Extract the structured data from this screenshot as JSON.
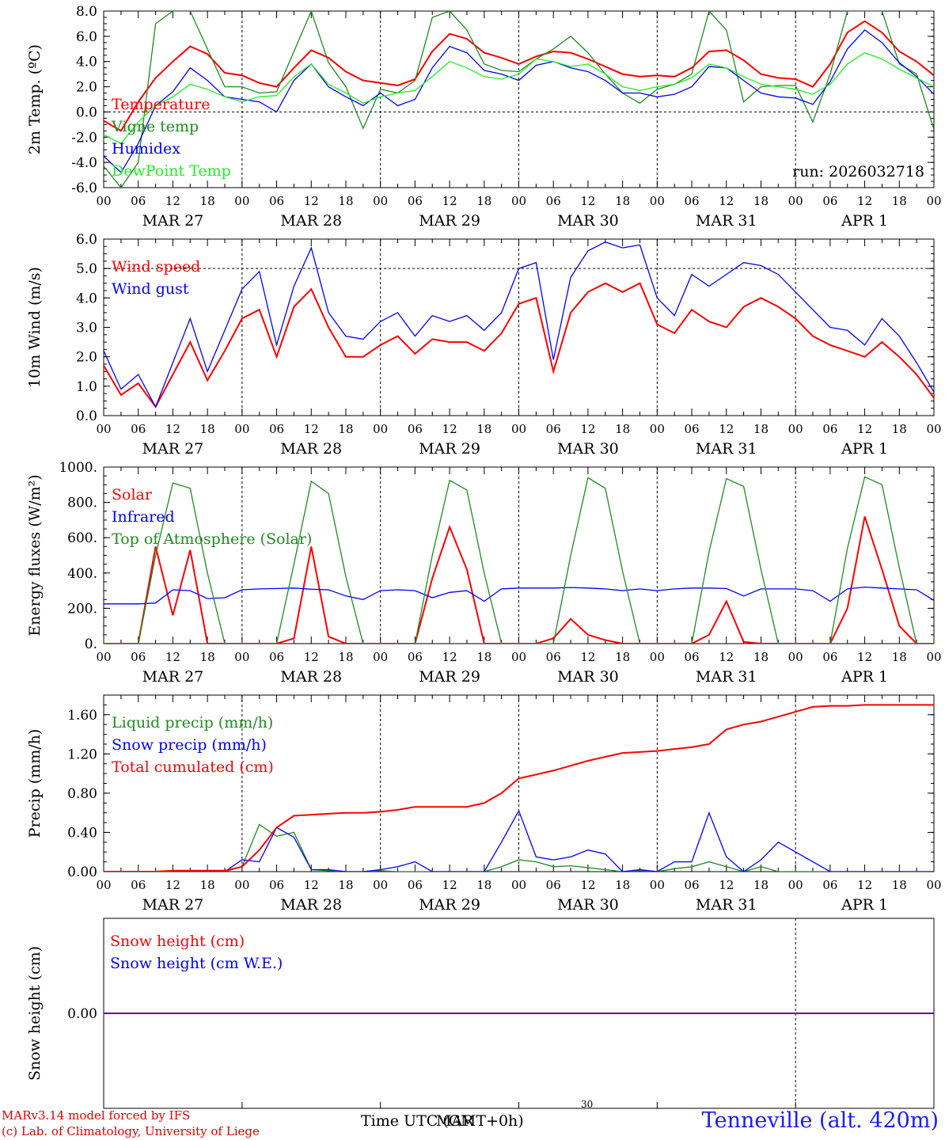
{
  "colors": {
    "red": "#ff0000",
    "green": "#1e8c1e",
    "blue": "#0000ff",
    "lightgreen": "#22ee22",
    "axis": "#000000"
  },
  "time_axis": {
    "hour_ticks": [
      "00",
      "06",
      "12",
      "18",
      "00",
      "06",
      "12",
      "18",
      "00",
      "06",
      "12",
      "18",
      "00",
      "06",
      "12",
      "18",
      "00",
      "06",
      "12",
      "18",
      "00",
      "06",
      "12",
      "18",
      "00"
    ],
    "day_labels": [
      "MAR 27",
      "MAR 28",
      "MAR 29",
      "MAR 30",
      "MAR 31",
      "APR  1"
    ]
  },
  "footer": {
    "model": "MARv3.14 model forced by IFS",
    "lab": "(c) Lab. of Climatology, University of Liege",
    "time_label": "Time UTC (GMT+0h)",
    "overlay_label": "MAR",
    "small_label": "30",
    "station": "Tenneville (alt. 420m)"
  },
  "chart_data": [
    {
      "type": "line",
      "ylabel": "2m Temp. (ºC)",
      "ylim": [
        -6,
        8
      ],
      "yticks": [
        "-6.0",
        "-4.0",
        "-2.0",
        "0.0",
        "2.0",
        "4.0",
        "6.0",
        "8.0"
      ],
      "annotation": "run: 2026032718",
      "ref_line": 0,
      "x_hours": [
        0,
        3,
        6,
        9,
        12,
        15,
        18,
        21,
        24,
        27,
        30,
        33,
        36,
        39,
        42,
        45,
        48,
        51,
        54,
        57,
        60,
        63,
        66,
        69,
        72,
        75,
        78,
        81,
        84,
        87,
        90,
        93,
        96,
        99,
        102,
        105,
        108,
        111,
        114,
        117,
        120,
        123,
        126,
        129,
        132,
        135,
        138,
        141,
        144
      ],
      "series": [
        {
          "name": "Temperature",
          "color": "red",
          "values": [
            -0.7,
            -1.5,
            0.8,
            2.7,
            4.0,
            5.2,
            4.6,
            3.1,
            2.9,
            2.3,
            2.0,
            3.5,
            4.9,
            4.3,
            3.2,
            2.5,
            2.3,
            2.1,
            2.6,
            4.8,
            6.2,
            5.8,
            4.7,
            4.3,
            3.8,
            4.4,
            4.8,
            4.7,
            4.2,
            3.6,
            3.0,
            2.8,
            2.9,
            2.8,
            3.5,
            4.8,
            4.9,
            4.1,
            3.0,
            2.7,
            2.6,
            2.0,
            3.8,
            6.3,
            7.2,
            6.3,
            4.8,
            4.0,
            2.9
          ]
        },
        {
          "name": "Vigne temp",
          "color": "green",
          "values": [
            -4.3,
            -6.0,
            -4.0,
            7.0,
            8.0,
            8.0,
            5.0,
            2.0,
            2.0,
            1.5,
            1.6,
            4.8,
            8.0,
            3.9,
            2.0,
            -1.3,
            1.8,
            1.5,
            2.5,
            7.5,
            8.0,
            6.5,
            3.8,
            3.3,
            3.2,
            4.2,
            5.0,
            6.0,
            4.7,
            3.0,
            1.5,
            0.7,
            1.8,
            2.2,
            3.0,
            8.0,
            6.5,
            0.8,
            2.0,
            2.1,
            2.1,
            -0.8,
            3.0,
            8.0,
            8.0,
            8.0,
            3.8,
            3.0,
            -1.4
          ]
        },
        {
          "name": "Humidex",
          "color": "blue",
          "values": [
            -3.5,
            -4.8,
            -2.5,
            0.5,
            1.6,
            3.5,
            2.5,
            1.2,
            1.0,
            0.8,
            0.0,
            2.5,
            3.8,
            2.0,
            1.2,
            0.5,
            1.5,
            0.5,
            1.0,
            3.5,
            5.2,
            4.7,
            3.3,
            3.0,
            2.5,
            3.7,
            4.0,
            3.5,
            3.2,
            2.5,
            1.5,
            1.5,
            1.2,
            1.4,
            2.0,
            3.6,
            3.5,
            2.5,
            1.5,
            1.2,
            1.1,
            0.6,
            2.4,
            5.0,
            6.5,
            5.5,
            3.9,
            2.8,
            1.4
          ]
        },
        {
          "name": "DewPoint Temp",
          "color": "lightgreen",
          "values": [
            -1.8,
            -2.5,
            -0.8,
            0.5,
            1.2,
            2.2,
            1.8,
            1.2,
            0.8,
            1.2,
            1.3,
            2.8,
            3.8,
            2.2,
            1.5,
            0.7,
            1.2,
            1.5,
            1.7,
            2.8,
            4.0,
            3.5,
            2.8,
            2.6,
            3.0,
            4.2,
            4.0,
            3.6,
            3.8,
            3.0,
            2.0,
            1.7,
            2.0,
            2.2,
            2.7,
            3.8,
            3.5,
            2.8,
            2.2,
            2.0,
            1.8,
            1.4,
            2.2,
            3.8,
            4.7,
            4.2,
            3.4,
            2.7,
            2.0
          ]
        }
      ]
    },
    {
      "type": "line",
      "ylabel": "10m Wind (m/s)",
      "ylim": [
        0,
        6
      ],
      "yticks": [
        "0.0",
        "1.0",
        "2.0",
        "3.0",
        "4.0",
        "5.0",
        "6.0"
      ],
      "ref_line": 5,
      "x_hours": [
        0,
        3,
        6,
        9,
        12,
        15,
        18,
        21,
        24,
        27,
        30,
        33,
        36,
        39,
        42,
        45,
        48,
        51,
        54,
        57,
        60,
        63,
        66,
        69,
        72,
        75,
        78,
        81,
        84,
        87,
        90,
        93,
        96,
        99,
        102,
        105,
        108,
        111,
        114,
        117,
        120,
        123,
        126,
        129,
        132,
        135,
        138,
        141,
        144
      ],
      "series": [
        {
          "name": "Wind speed",
          "color": "red",
          "values": [
            1.7,
            0.7,
            1.1,
            0.3,
            1.4,
            2.5,
            1.2,
            2.2,
            3.3,
            3.6,
            2.0,
            3.7,
            4.3,
            3.0,
            2.0,
            2.0,
            2.4,
            2.7,
            2.1,
            2.6,
            2.5,
            2.5,
            2.2,
            2.8,
            3.8,
            4.0,
            1.5,
            3.5,
            4.2,
            4.5,
            4.2,
            4.5,
            3.1,
            2.8,
            3.6,
            3.2,
            3.0,
            3.7,
            4.0,
            3.7,
            3.3,
            2.7,
            2.4,
            2.2,
            2.0,
            2.5,
            2.0,
            1.4,
            0.6
          ]
        },
        {
          "name": "Wind gust",
          "color": "blue",
          "values": [
            2.2,
            0.9,
            1.4,
            0.3,
            1.8,
            3.3,
            1.5,
            2.9,
            4.3,
            4.9,
            2.4,
            4.4,
            5.7,
            3.5,
            2.7,
            2.6,
            3.2,
            3.5,
            2.7,
            3.4,
            3.2,
            3.4,
            2.9,
            3.5,
            5.0,
            5.2,
            1.9,
            4.7,
            5.6,
            5.9,
            5.7,
            5.8,
            4.0,
            3.4,
            4.8,
            4.4,
            4.8,
            5.2,
            5.1,
            4.8,
            4.2,
            3.6,
            3.0,
            2.9,
            2.4,
            3.3,
            2.7,
            1.8,
            0.8
          ]
        }
      ]
    },
    {
      "type": "line",
      "ylabel": "Energy fluxes (W/m²)",
      "ylim": [
        0,
        1000
      ],
      "yticks": [
        "0.",
        "200.",
        "400.",
        "600.",
        "800.",
        "1000."
      ],
      "x_hours": [
        0,
        3,
        6,
        9,
        12,
        15,
        18,
        21,
        24,
        27,
        30,
        33,
        36,
        39,
        42,
        45,
        48,
        51,
        54,
        57,
        60,
        63,
        66,
        69,
        72,
        75,
        78,
        81,
        84,
        87,
        90,
        93,
        96,
        99,
        102,
        105,
        108,
        111,
        114,
        117,
        120,
        123,
        126,
        129,
        132,
        135,
        138,
        141,
        144
      ],
      "series": [
        {
          "name": "Solar",
          "color": "red",
          "values": [
            0,
            0,
            0,
            550,
            160,
            530,
            0,
            0,
            0,
            0,
            0,
            30,
            550,
            40,
            0,
            0,
            0,
            0,
            0,
            370,
            660,
            420,
            0,
            0,
            0,
            0,
            30,
            140,
            50,
            20,
            0,
            0,
            0,
            0,
            0,
            50,
            240,
            10,
            0,
            0,
            0,
            0,
            0,
            200,
            720,
            420,
            100,
            0,
            0
          ]
        },
        {
          "name": "Infrared",
          "color": "blue",
          "values": [
            225,
            225,
            225,
            230,
            305,
            300,
            255,
            260,
            305,
            310,
            312,
            315,
            308,
            305,
            270,
            250,
            300,
            305,
            300,
            260,
            290,
            300,
            240,
            310,
            315,
            315,
            315,
            318,
            315,
            310,
            300,
            310,
            300,
            310,
            315,
            315,
            312,
            270,
            310,
            310,
            310,
            300,
            240,
            310,
            320,
            315,
            310,
            305,
            245
          ]
        },
        {
          "name": "Top of Atmosphere (Solar)",
          "color": "green",
          "values": [
            0,
            0,
            0,
            500,
            910,
            880,
            400,
            0,
            0,
            0,
            0,
            450,
            920,
            850,
            380,
            0,
            0,
            0,
            0,
            500,
            925,
            870,
            400,
            0,
            0,
            0,
            0,
            500,
            940,
            880,
            410,
            0,
            0,
            0,
            0,
            520,
            935,
            890,
            420,
            0,
            0,
            0,
            0,
            540,
            945,
            900,
            430,
            0,
            0
          ]
        }
      ]
    },
    {
      "type": "line",
      "ylabel": "Precip (mm/h)",
      "ylim": [
        0,
        1.8
      ],
      "yticks": [
        "0.00",
        "0.40",
        "0.80",
        "1.20",
        "1.60"
      ],
      "x_hours": [
        0,
        3,
        6,
        9,
        12,
        15,
        18,
        21,
        24,
        27,
        30,
        33,
        36,
        39,
        42,
        45,
        48,
        51,
        54,
        57,
        60,
        63,
        66,
        69,
        72,
        75,
        78,
        81,
        84,
        87,
        90,
        93,
        96,
        99,
        102,
        105,
        108,
        111,
        114,
        117,
        120,
        123,
        126,
        129,
        132,
        135,
        138,
        141,
        144
      ],
      "series": [
        {
          "name": "Liquid precip (mm/h)",
          "color": "green",
          "values": [
            0,
            0,
            0,
            0,
            0.01,
            0,
            0,
            0,
            0.05,
            0.48,
            0.36,
            0.4,
            0.02,
            0.01,
            0,
            0,
            0.01,
            0,
            0,
            0,
            0,
            0,
            0,
            0.05,
            0.12,
            0.1,
            0.05,
            0.06,
            0.04,
            0.02,
            0,
            0.01,
            0,
            0.03,
            0.05,
            0.1,
            0.05,
            0,
            0.05,
            0,
            0,
            0,
            0,
            0,
            0,
            0,
            0,
            0,
            0
          ]
        },
        {
          "name": "Snow precip (mm/h)",
          "color": "blue",
          "values": [
            0,
            0,
            0,
            0,
            0.01,
            0,
            0,
            0,
            0.12,
            0.1,
            0.45,
            0.35,
            0.02,
            0.02,
            0,
            0,
            0.02,
            0.05,
            0.1,
            0,
            0,
            0,
            0,
            0.3,
            0.62,
            0.15,
            0.12,
            0.15,
            0.22,
            0.18,
            0,
            0.02,
            0,
            0.1,
            0.1,
            0.6,
            0.15,
            0,
            0.12,
            0.3,
            0.2,
            0.1,
            0,
            0,
            0,
            0,
            0,
            0,
            0
          ]
        },
        {
          "name": "Total cumulated (cm)",
          "color": "red",
          "values": [
            0,
            0,
            0,
            0,
            0.01,
            0.01,
            0.01,
            0.01,
            0.05,
            0.22,
            0.45,
            0.57,
            0.58,
            0.59,
            0.6,
            0.6,
            0.61,
            0.63,
            0.66,
            0.66,
            0.66,
            0.66,
            0.7,
            0.8,
            0.95,
            0.99,
            1.03,
            1.08,
            1.13,
            1.17,
            1.21,
            1.22,
            1.23,
            1.25,
            1.27,
            1.3,
            1.45,
            1.5,
            1.53,
            1.58,
            1.63,
            1.68,
            1.69,
            1.69,
            1.7,
            1.7,
            1.7,
            1.7,
            1.7
          ]
        }
      ]
    },
    {
      "type": "line",
      "ylabel": "Snow height (cm)",
      "ylim": [
        -1,
        1
      ],
      "yticks": [
        "0.00"
      ],
      "x_hours": [
        0,
        144
      ],
      "series": [
        {
          "name": "Snow height (cm)",
          "color": "red",
          "values": [
            0,
            0
          ]
        },
        {
          "name": "Snow height (cm W.E.)",
          "color": "blue",
          "values": [
            0,
            0
          ]
        }
      ]
    }
  ]
}
